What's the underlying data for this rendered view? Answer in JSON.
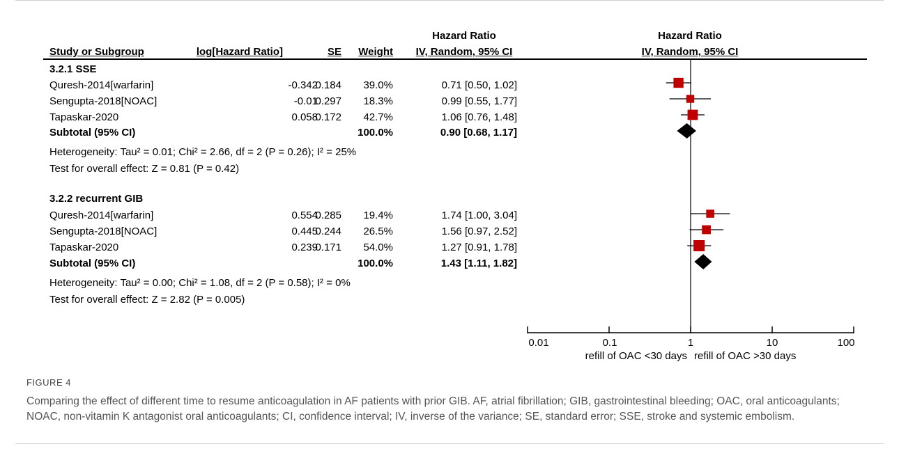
{
  "headers": {
    "study": "Study or Subgroup",
    "loghr": "log[Hazard Ratio]",
    "se": "SE",
    "weight": "Weight",
    "hr_top": "Hazard Ratio",
    "hr_bottom": "IV, Random, 95% CI",
    "plot_top": "Hazard Ratio",
    "plot_bottom": "IV, Random, 95% CI"
  },
  "subgroups": [
    {
      "title": "3.2.1 SSE",
      "studies": [
        {
          "name": "Quresh-2014[warfarin]",
          "loghr": "-0.342",
          "se": "0.184",
          "weight": "39.0%",
          "ci_text": "0.71 [0.50, 1.02]"
        },
        {
          "name": "Sengupta-2018[NOAC]",
          "loghr": "-0.01",
          "se": "0.297",
          "weight": "18.3%",
          "ci_text": "0.99 [0.55, 1.77]"
        },
        {
          "name": "Tapaskar-2020",
          "loghr": "0.058",
          "se": "0.172",
          "weight": "42.7%",
          "ci_text": "1.06 [0.76, 1.48]"
        }
      ],
      "subtotal": {
        "label": "Subtotal (95% CI)",
        "weight": "100.0%",
        "ci_text": "0.90 [0.68, 1.17]"
      },
      "heterogeneity": "Heterogeneity: Tau² = 0.01; Chi² = 2.66, df = 2 (P = 0.26); I² = 25%",
      "overall": "Test for overall effect: Z = 0.81 (P = 0.42)"
    },
    {
      "title": "3.2.2 recurrent GIB",
      "studies": [
        {
          "name": "Quresh-2014[warfarin]",
          "loghr": "0.554",
          "se": "0.285",
          "weight": "19.4%",
          "ci_text": "1.74 [1.00, 3.04]"
        },
        {
          "name": "Sengupta-2018[NOAC]",
          "loghr": "0.445",
          "se": "0.244",
          "weight": "26.5%",
          "ci_text": "1.56 [0.97, 2.52]"
        },
        {
          "name": "Tapaskar-2020",
          "loghr": "0.239",
          "se": "0.171",
          "weight": "54.0%",
          "ci_text": "1.27 [0.91, 1.78]"
        }
      ],
      "subtotal": {
        "label": "Subtotal (95% CI)",
        "weight": "100.0%",
        "ci_text": "1.43 [1.11, 1.82]"
      },
      "heterogeneity": "Heterogeneity: Tau² = 0.00; Chi² = 1.08, df = 2 (P = 0.58); I² = 0%",
      "overall": "Test for overall effect: Z = 2.82 (P = 0.005)"
    }
  ],
  "axis": {
    "ticks": [
      "0.01",
      "0.1",
      "1",
      "10",
      "100"
    ],
    "left_label": "refill of OAC <30 days",
    "right_label": "refill of OAC >30 days"
  },
  "figure_label": "FIGURE 4",
  "caption": "Comparing the effect of different time to resume anticoagulation in AF patients with prior GIB. AF, atrial fibrillation; GIB, gastrointestinal bleeding; OAC, oral anticoagulants; NOAC, non-vitamin K antagonist oral anticoagulants; CI, confidence interval; IV, inverse of the variance; SE, standard error; SSE, stroke and systemic embolism.",
  "colors": {
    "study_marker": "#c00000",
    "summary_marker": "#000000"
  },
  "chart_data": {
    "type": "forest",
    "scale": "log",
    "xlim": [
      0.01,
      100
    ],
    "null_value": 1,
    "groups": [
      {
        "name": "3.2.1 SSE",
        "points": [
          {
            "label": "Quresh-2014[warfarin]",
            "hr": 0.71,
            "lo": 0.5,
            "hi": 1.02,
            "weight": 39.0
          },
          {
            "label": "Sengupta-2018[NOAC]",
            "hr": 0.99,
            "lo": 0.55,
            "hi": 1.77,
            "weight": 18.3
          },
          {
            "label": "Tapaskar-2020",
            "hr": 1.06,
            "lo": 0.76,
            "hi": 1.48,
            "weight": 42.7
          }
        ],
        "subtotal": {
          "hr": 0.9,
          "lo": 0.68,
          "hi": 1.17
        }
      },
      {
        "name": "3.2.2 recurrent GIB",
        "points": [
          {
            "label": "Quresh-2014[warfarin]",
            "hr": 1.74,
            "lo": 1.0,
            "hi": 3.04,
            "weight": 19.4
          },
          {
            "label": "Sengupta-2018[NOAC]",
            "hr": 1.56,
            "lo": 0.97,
            "hi": 2.52,
            "weight": 26.5
          },
          {
            "label": "Tapaskar-2020",
            "hr": 1.27,
            "lo": 0.91,
            "hi": 1.78,
            "weight": 54.0
          }
        ],
        "subtotal": {
          "hr": 1.43,
          "lo": 1.11,
          "hi": 1.82
        }
      }
    ]
  }
}
